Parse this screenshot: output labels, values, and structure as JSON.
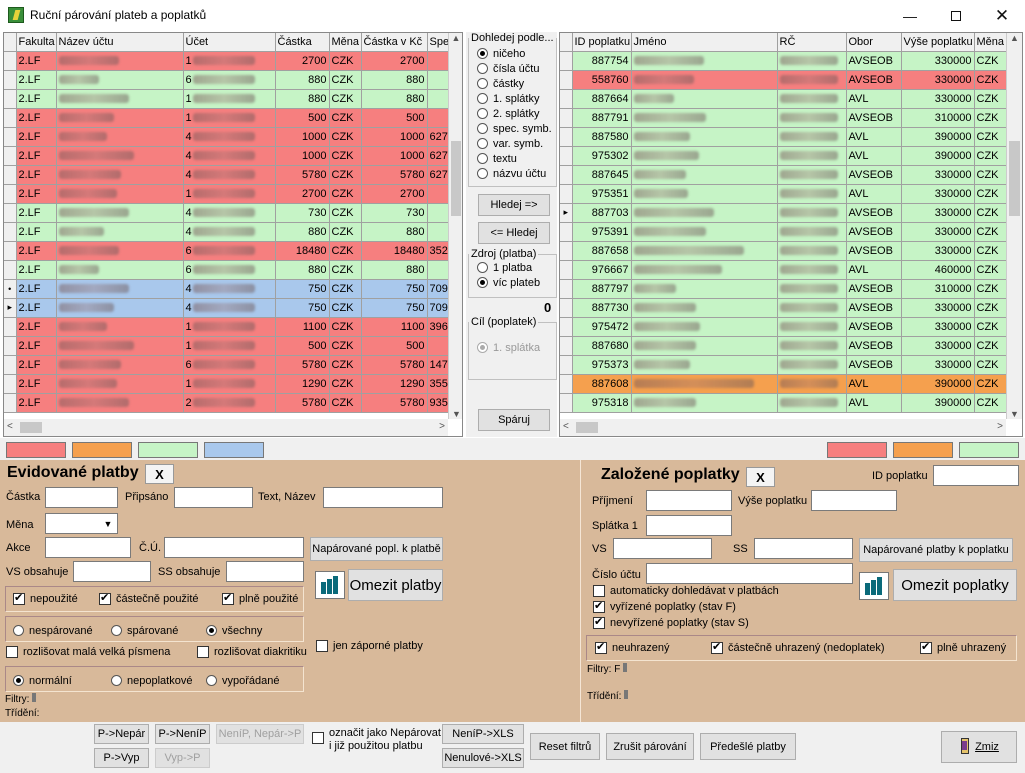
{
  "window": {
    "title": "Ruční párování plateb a poplatků"
  },
  "left_grid": {
    "columns": [
      "Fakulta",
      "Název účtu",
      "Účet",
      "Částka",
      "Měna",
      "Částka v Kč",
      "Spe"
    ],
    "rows": [
      {
        "c": "red",
        "ind": "",
        "fak": "2.LF",
        "ucet": "1",
        "castka": "2700",
        "mena": "CZK",
        "kc": "2700",
        "spe": ""
      },
      {
        "c": "green",
        "ind": "",
        "fak": "2.LF",
        "ucet": "6",
        "castka": "880",
        "mena": "CZK",
        "kc": "880",
        "spe": ""
      },
      {
        "c": "green",
        "ind": "",
        "fak": "2.LF",
        "ucet": "1",
        "castka": "880",
        "mena": "CZK",
        "kc": "880",
        "spe": ""
      },
      {
        "c": "red",
        "ind": "",
        "fak": "2.LF",
        "ucet": "1",
        "castka": "500",
        "mena": "CZK",
        "kc": "500",
        "spe": ""
      },
      {
        "c": "red",
        "ind": "",
        "fak": "2.LF",
        "ucet": "4",
        "castka": "1000",
        "mena": "CZK",
        "kc": "1000",
        "spe": "627"
      },
      {
        "c": "red",
        "ind": "",
        "fak": "2.LF",
        "ucet": "4",
        "castka": "1000",
        "mena": "CZK",
        "kc": "1000",
        "spe": "627"
      },
      {
        "c": "red",
        "ind": "",
        "fak": "2.LF",
        "ucet": "4",
        "castka": "5780",
        "mena": "CZK",
        "kc": "5780",
        "spe": "627"
      },
      {
        "c": "red",
        "ind": "",
        "fak": "2.LF",
        "ucet": "1",
        "castka": "2700",
        "mena": "CZK",
        "kc": "2700",
        "spe": ""
      },
      {
        "c": "green",
        "ind": "",
        "fak": "2.LF",
        "ucet": "4",
        "castka": "730",
        "mena": "CZK",
        "kc": "730",
        "spe": ""
      },
      {
        "c": "green",
        "ind": "",
        "fak": "2.LF",
        "ucet": "4",
        "castka": "880",
        "mena": "CZK",
        "kc": "880",
        "spe": ""
      },
      {
        "c": "red",
        "ind": "",
        "fak": "2.LF",
        "ucet": "6",
        "castka": "18480",
        "mena": "CZK",
        "kc": "18480",
        "spe": "352"
      },
      {
        "c": "green",
        "ind": "",
        "fak": "2.LF",
        "ucet": "6",
        "castka": "880",
        "mena": "CZK",
        "kc": "880",
        "spe": ""
      },
      {
        "c": "blue",
        "ind": "•",
        "fak": "2.LF",
        "ucet": "4",
        "castka": "750",
        "mena": "CZK",
        "kc": "750",
        "spe": "709"
      },
      {
        "c": "blue",
        "ind": "▸",
        "fak": "2.LF",
        "ucet": "4",
        "castka": "750",
        "mena": "CZK",
        "kc": "750",
        "spe": "709"
      },
      {
        "c": "red",
        "ind": "",
        "fak": "2.LF",
        "ucet": "1",
        "castka": "1100",
        "mena": "CZK",
        "kc": "1100",
        "spe": "396"
      },
      {
        "c": "red",
        "ind": "",
        "fak": "2.LF",
        "ucet": "1",
        "castka": "500",
        "mena": "CZK",
        "kc": "500",
        "spe": ""
      },
      {
        "c": "red",
        "ind": "",
        "fak": "2.LF",
        "ucet": "6",
        "castka": "5780",
        "mena": "CZK",
        "kc": "5780",
        "spe": "147"
      },
      {
        "c": "red",
        "ind": "",
        "fak": "2.LF",
        "ucet": "1",
        "castka": "1290",
        "mena": "CZK",
        "kc": "1290",
        "spe": "355"
      },
      {
        "c": "red",
        "ind": "",
        "fak": "2.LF",
        "ucet": "2",
        "castka": "5780",
        "mena": "CZK",
        "kc": "5780",
        "spe": "935"
      }
    ]
  },
  "right_grid": {
    "columns": [
      "ID poplatku",
      "Jméno",
      "RČ",
      "Obor",
      "Výše poplatku",
      "Měna"
    ],
    "rows": [
      {
        "c": "green",
        "ind": "",
        "id": "887754",
        "obor": "AVSEOB",
        "vyse": "330000",
        "mena": "CZK"
      },
      {
        "c": "red",
        "ind": "",
        "id": "558760",
        "obor": "AVSEOB",
        "vyse": "330000",
        "mena": "CZK"
      },
      {
        "c": "green",
        "ind": "",
        "id": "887664",
        "obor": "AVL",
        "vyse": "330000",
        "mena": "CZK"
      },
      {
        "c": "green",
        "ind": "",
        "id": "887791",
        "obor": "AVSEOB",
        "vyse": "310000",
        "mena": "CZK"
      },
      {
        "c": "green",
        "ind": "",
        "id": "887580",
        "obor": "AVL",
        "vyse": "390000",
        "mena": "CZK"
      },
      {
        "c": "green",
        "ind": "",
        "id": "975302",
        "obor": "AVL",
        "vyse": "390000",
        "mena": "CZK"
      },
      {
        "c": "green",
        "ind": "",
        "id": "887645",
        "obor": "AVSEOB",
        "vyse": "330000",
        "mena": "CZK"
      },
      {
        "c": "green",
        "ind": "",
        "id": "975351",
        "obor": "AVL",
        "vyse": "330000",
        "mena": "CZK"
      },
      {
        "c": "green",
        "ind": "▸",
        "id": "887703",
        "obor": "AVSEOB",
        "vyse": "330000",
        "mena": "CZK"
      },
      {
        "c": "green",
        "ind": "",
        "id": "975391",
        "obor": "AVSEOB",
        "vyse": "330000",
        "mena": "CZK"
      },
      {
        "c": "green",
        "ind": "",
        "id": "887658",
        "obor": "AVSEOB",
        "vyse": "330000",
        "mena": "CZK"
      },
      {
        "c": "green",
        "ind": "",
        "id": "976667",
        "obor": "AVL",
        "vyse": "460000",
        "mena": "CZK"
      },
      {
        "c": "green",
        "ind": "",
        "id": "887797",
        "obor": "AVSEOB",
        "vyse": "310000",
        "mena": "CZK"
      },
      {
        "c": "green",
        "ind": "",
        "id": "887730",
        "obor": "AVSEOB",
        "vyse": "330000",
        "mena": "CZK"
      },
      {
        "c": "green",
        "ind": "",
        "id": "975472",
        "obor": "AVSEOB",
        "vyse": "330000",
        "mena": "CZK"
      },
      {
        "c": "green",
        "ind": "",
        "id": "887680",
        "obor": "AVSEOB",
        "vyse": "330000",
        "mena": "CZK"
      },
      {
        "c": "green",
        "ind": "",
        "id": "975373",
        "obor": "AVSEOB",
        "vyse": "330000",
        "mena": "CZK"
      },
      {
        "c": "orange",
        "ind": "",
        "id": "887608",
        "obor": "AVL",
        "vyse": "390000",
        "mena": "CZK"
      },
      {
        "c": "green",
        "ind": "",
        "id": "975318",
        "obor": "AVL",
        "vyse": "390000",
        "mena": "CZK"
      }
    ]
  },
  "search": {
    "legend": "Dohledej podle...",
    "options": [
      "ničeho",
      "čísla účtu",
      "částky",
      "1. splátky",
      "2. splátky",
      "spec. symb.",
      "var. symb.",
      "textu",
      "názvu účtu"
    ],
    "btn_fwd": "Hledej =>",
    "btn_back": "<= Hledej",
    "source_legend": "Zdroj (platba)",
    "source_opts": [
      "1 platba",
      "víc plateb"
    ],
    "count": "0",
    "target_legend": "Cíl (poplatek)",
    "target_opt": "1. splátka",
    "pair_btn": "Spáruj"
  },
  "colors": {
    "red": "#f67f7f",
    "orange": "#f5a04e",
    "green": "#c6f4c6",
    "blue": "#a9c8ec"
  },
  "left_form": {
    "title": "Evidované platby",
    "x": "X",
    "castka": "Částka",
    "pripsano": "Připsáno",
    "text_nazev": "Text, Název",
    "mena": "Měna",
    "akce": "Akce",
    "cu": "Č.Ú.",
    "napar_btn": "Napárované popl. k platbě",
    "vs": "VS obsahuje",
    "ss": "SS obsahuje",
    "omezit": "Omezit platby",
    "ck1": "nepoužité",
    "ck2": "částečně použité",
    "ck3": "plně použité",
    "r1": "nespárované",
    "r2": "spárované",
    "r3": "všechny",
    "ck4": "rozlišovat malá velká písmena",
    "ck5": "rozlišovat diakritiku",
    "jen": "jen záporné platby",
    "s1": "normální",
    "s2": "nepoplatkové",
    "s3": "vypořádané",
    "filtry": "Filtry:",
    "trideni": "Třídění:"
  },
  "right_form": {
    "title": "Založené poplatky",
    "x": "X",
    "id": "ID poplatku",
    "prijmeni": "Příjmení",
    "vyse": "Výše poplatku",
    "splatka": "Splátka 1",
    "vs": "VS",
    "ss": "SS",
    "napar_btn": "Napárované platby k poplatku",
    "cislo": "Číslo účtu",
    "ck1": "automaticky dohledávat v platbách",
    "ck2": "vyřízené poplatky (stav F)",
    "ck3": "nevyřízené poplatky (stav S)",
    "omezit": "Omezit poplatky",
    "u1": "neuhrazený",
    "u2": "částečně uhrazený (nedoplatek)",
    "u3": "plně uhrazený",
    "filtry": "Filtry: F",
    "trideni": "Třídění:"
  },
  "bottom": {
    "b1": "P->Nepár",
    "b2": "P->NeníP",
    "b3": "NeníP, Nepár->P",
    "b4": "P->Vyp",
    "b5": "Vyp->P",
    "ozn1": "označit jako Nepárovat",
    "ozn2": "i již použitou platbu",
    "x1": "NeníP->XLS",
    "x2": "Nenulové->XLS",
    "reset": "Reset filtrů",
    "zrusit": "Zrušit párování",
    "predesle": "Předešlé platby",
    "zmiz": "Zmiz"
  }
}
